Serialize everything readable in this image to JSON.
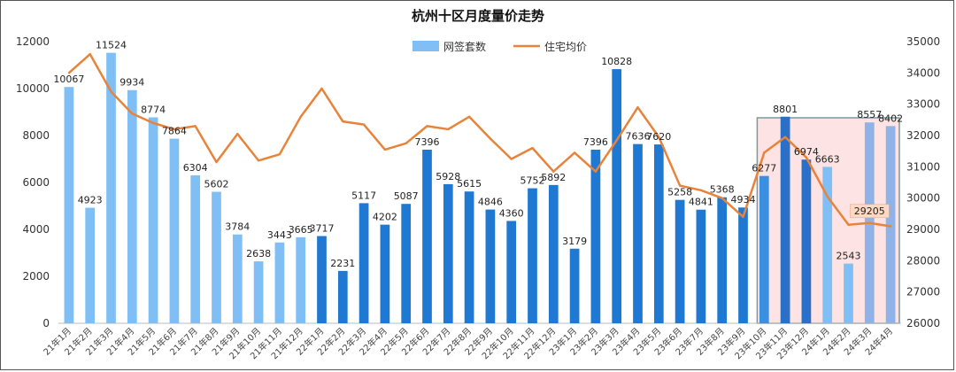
{
  "chart_data": {
    "type": "bar",
    "title": "杭州十区月度量价走势",
    "categories": [
      "21年1月",
      "21年2月",
      "21年3月",
      "21年4月",
      "21年5月",
      "21年6月",
      "21年7月",
      "21年8月",
      "21年9月",
      "21年10月",
      "21年11月",
      "21年12月",
      "22年1月",
      "22年2月",
      "22年3月",
      "22年4月",
      "22年5月",
      "22年6月",
      "22年7月",
      "22年8月",
      "22年9月",
      "22年10月",
      "22年11月",
      "22年12月",
      "23年1月",
      "23年2月",
      "23年3月",
      "23年4月",
      "23年5月",
      "23年6月",
      "23年7月",
      "23年8月",
      "23年9月",
      "23年10月",
      "23年11月",
      "23年12月",
      "24年1月",
      "24年2月",
      "24年3月",
      "24年4月"
    ],
    "series": [
      {
        "name": "网签套数",
        "type": "bar",
        "axis": "left",
        "values": [
          10067,
          4923,
          11524,
          9934,
          8774,
          7864,
          6304,
          5602,
          3784,
          2638,
          3443,
          3665,
          3717,
          2231,
          5117,
          4202,
          5087,
          7396,
          5928,
          5615,
          4846,
          4360,
          5752,
          5892,
          3179,
          7396,
          10828,
          7636,
          7620,
          5258,
          4841,
          5368,
          4934,
          6277,
          8801,
          6974,
          6663,
          2543,
          8557,
          8402
        ],
        "colors": [
          "#7fbff5",
          "#7fbff5",
          "#7fbff5",
          "#7fbff5",
          "#7fbff5",
          "#7fbff5",
          "#7fbff5",
          "#7fbff5",
          "#7fbff5",
          "#7fbff5",
          "#7fbff5",
          "#7fbff5",
          "#1f78d1",
          "#1f78d1",
          "#1f78d1",
          "#1f78d1",
          "#1f78d1",
          "#1f78d1",
          "#1f78d1",
          "#1f78d1",
          "#1f78d1",
          "#1f78d1",
          "#1f78d1",
          "#1f78d1",
          "#1f78d1",
          "#1f78d1",
          "#1f78d1",
          "#1f78d1",
          "#1f78d1",
          "#1f78d1",
          "#1f78d1",
          "#1f78d1",
          "#1f78d1",
          "#3b8fe0",
          "#2a6fc8",
          "#2a6fc8",
          "#7fbff5",
          "#7fbff5",
          "#8fb3e6",
          "#8fb3e6"
        ]
      },
      {
        "name": "住宅均价",
        "type": "line",
        "axis": "right",
        "color": "#e8833a",
        "values": [
          34000,
          34600,
          33400,
          32700,
          32400,
          32200,
          32300,
          31150,
          32050,
          31200,
          31400,
          32600,
          33500,
          32450,
          32350,
          31550,
          31750,
          32300,
          32200,
          32600,
          31900,
          31250,
          31600,
          30850,
          31450,
          30850,
          31850,
          32900,
          31950,
          30400,
          30250,
          30000,
          29400,
          31450,
          31950,
          31300,
          30050,
          29150,
          29205,
          29100
        ],
        "labels": [
          {
            "index": 38,
            "text": "29205"
          }
        ]
      }
    ],
    "yleft": {
      "min": 0,
      "max": 12000,
      "step": 2000
    },
    "yright": {
      "min": 26000,
      "max": 35000,
      "step": 1000
    },
    "legend": {
      "position": "top-center",
      "items": [
        "网签套数",
        "住宅均价"
      ]
    },
    "grid": false,
    "highlight": {
      "from": "23年10月",
      "to": "24年4月",
      "fill": "#fde3e3",
      "border": "#7a9a9a"
    },
    "colors": {
      "bar_main": "#1f78d1",
      "bar_light": "#7fbff5",
      "line": "#e8833a"
    }
  }
}
